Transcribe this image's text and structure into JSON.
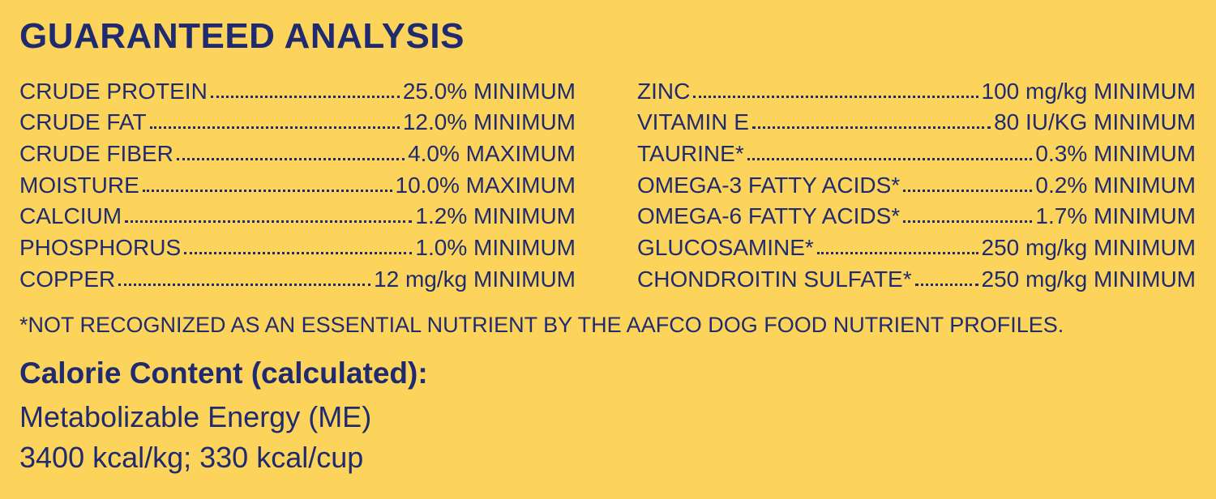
{
  "header": {
    "title": "GUARANTEED ANALYSIS"
  },
  "left_rows": [
    {
      "name": "CRUDE PROTEIN",
      "value": "25.0% MINIMUM"
    },
    {
      "name": "CRUDE FAT",
      "value": "12.0% MINIMUM"
    },
    {
      "name": "CRUDE FIBER",
      "value": "4.0% MAXIMUM"
    },
    {
      "name": "MOISTURE",
      "value": "10.0% MAXIMUM"
    },
    {
      "name": "CALCIUM",
      "value": "1.2% MINIMUM"
    },
    {
      "name": "PHOSPHORUS",
      "value": "1.0% MINIMUM"
    },
    {
      "name": "COPPER",
      "value": "12 mg/kg MINIMUM"
    }
  ],
  "right_rows": [
    {
      "name": "ZINC",
      "value": "100 mg/kg MINIMUM"
    },
    {
      "name": "VITAMIN E",
      "value": "80 IU/KG MINIMUM"
    },
    {
      "name": "TAURINE*",
      "value": "0.3% MINIMUM"
    },
    {
      "name": "OMEGA-3 FATTY ACIDS*",
      "value": "0.2% MINIMUM"
    },
    {
      "name": "OMEGA-6 FATTY ACIDS*",
      "value": "1.7% MINIMUM"
    },
    {
      "name": "GLUCOSAMINE*",
      "value": "250 mg/kg MINIMUM"
    },
    {
      "name": "CHONDROITIN SULFATE*",
      "value": "250 mg/kg MINIMUM"
    }
  ],
  "footnote": "*NOT RECOGNIZED AS AN ESSENTIAL NUTRIENT BY THE AAFCO DOG FOOD NUTRIENT PROFILES.",
  "calorie": {
    "heading": "Calorie Content (calculated):",
    "lines": [
      "Metabolizable Energy (ME)",
      "3400 kcal/kg; 330 kcal/cup"
    ]
  }
}
